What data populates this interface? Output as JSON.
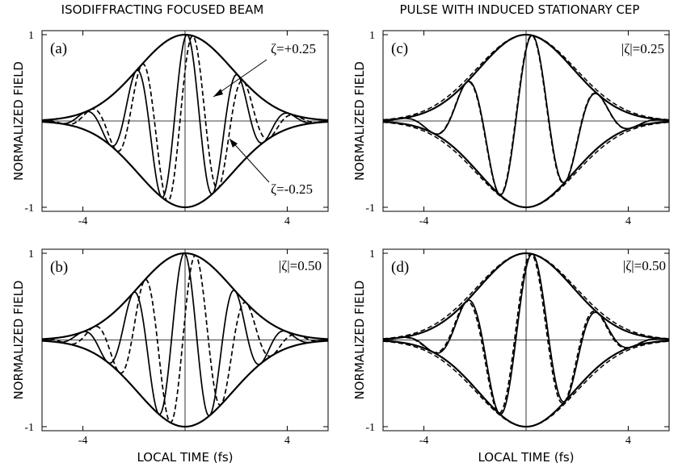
{
  "titles": {
    "left": "ISODIFFRACTING FOCUSED BEAM",
    "right": "PULSE WITH INDUCED STATIONARY CEP"
  },
  "chart_data": [
    {
      "type": "line",
      "panel_label": "(a)",
      "ylabel": "NORMALIZED FIELD",
      "xlabel": "",
      "xlim": [
        -5.6,
        5.6
      ],
      "ylim": [
        -1,
        1
      ],
      "xticks": [
        "-4",
        "4"
      ],
      "yticks": [
        "1",
        "-1"
      ],
      "annotations": [
        "ζ=+0.25",
        "ζ=-0.25"
      ],
      "series": [
        {
          "name": "ζ=+0.25",
          "style": "solid",
          "carrier_period_fs": 2.0,
          "phase_shift_rad": 0.35
        },
        {
          "name": "ζ=-0.25",
          "style": "dashed",
          "carrier_period_fs": 2.0,
          "phase_shift_rad": -0.35
        },
        {
          "name": "",
          "style": "envelope",
          "gaussian_width_fs": 2.6
        }
      ]
    },
    {
      "type": "line",
      "panel_label": "(b)",
      "ylabel": "NORMALIZED FIELD",
      "xlabel": "LOCAL TIME (fs)",
      "xlim": [
        -5.6,
        5.6
      ],
      "ylim": [
        -1,
        1
      ],
      "xticks": [
        "-4",
        "4"
      ],
      "yticks": [
        "1",
        "-1"
      ],
      "annotations": [
        "|ζ|=0.50"
      ],
      "series": [
        {
          "name": "",
          "style": "solid",
          "carrier_period_fs": 2.0,
          "phase_shift_rad": 0.7
        },
        {
          "name": "",
          "style": "dashed",
          "carrier_period_fs": 2.0,
          "phase_shift_rad": -0.7
        },
        {
          "name": "",
          "style": "envelope",
          "gaussian_width_fs": 2.6
        }
      ]
    },
    {
      "type": "line",
      "panel_label": "(c)",
      "ylabel": "NORMALIZED FIELD",
      "xlabel": "",
      "xlim": [
        -5.6,
        5.6
      ],
      "ylim": [
        -1,
        1
      ],
      "xticks": [
        "-4",
        "4"
      ],
      "yticks": [
        "1",
        "-1"
      ],
      "annotations": [
        "|ζ|=0.25"
      ],
      "series": [
        {
          "name": "",
          "style": "solid",
          "carrier_period_fs": 2.6,
          "phase_shift_rad": 0.0
        },
        {
          "name": "",
          "style": "dashed",
          "carrier_period_fs": 2.6,
          "phase_shift_rad": 0.04
        },
        {
          "name": "",
          "style": "envelope",
          "gaussian_width_fs": 2.6
        }
      ]
    },
    {
      "type": "line",
      "panel_label": "(d)",
      "ylabel": "NORMALIZED FIELD",
      "xlabel": "LOCAL TIME (fs)",
      "xlim": [
        -5.6,
        5.6
      ],
      "ylim": [
        -1,
        1
      ],
      "xticks": [
        "-4",
        "4"
      ],
      "yticks": [
        "1",
        "-1"
      ],
      "annotations": [
        "|ζ|=0.50"
      ],
      "series": [
        {
          "name": "",
          "style": "solid",
          "carrier_period_fs": 2.6,
          "phase_shift_rad": 0.0
        },
        {
          "name": "",
          "style": "dashed",
          "carrier_period_fs": 2.6,
          "phase_shift_rad": 0.12
        },
        {
          "name": "",
          "style": "envelope",
          "gaussian_width_fs": 2.6
        }
      ]
    }
  ]
}
